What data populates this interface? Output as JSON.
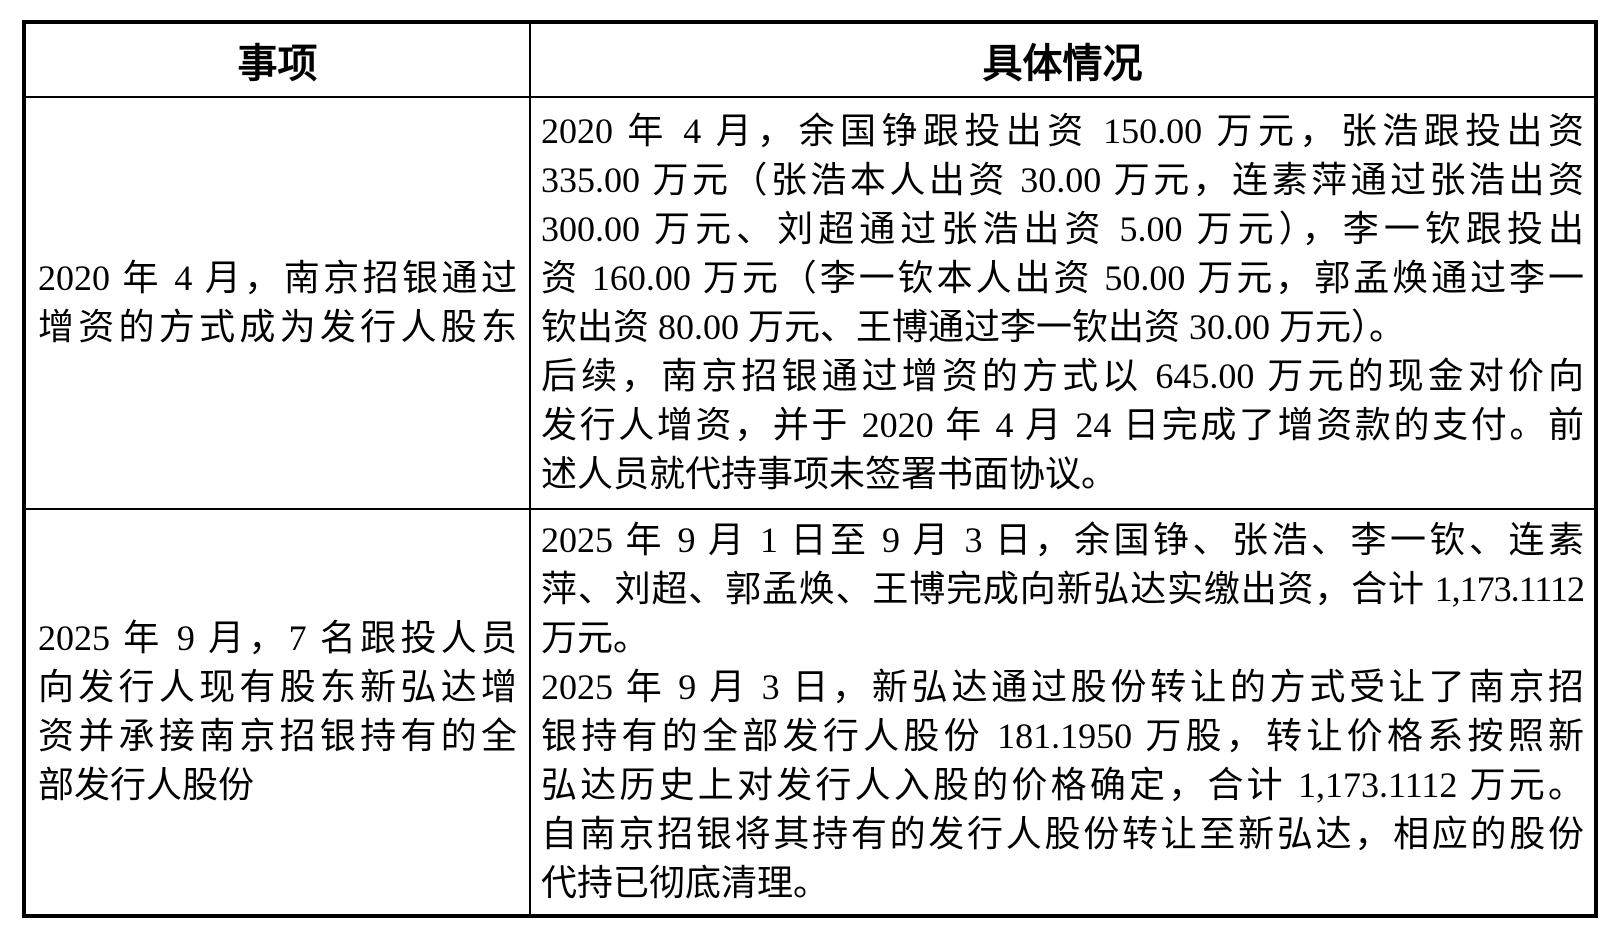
{
  "table": {
    "header": {
      "item": "事项",
      "detail": "具体情况"
    },
    "rows": [
      {
        "item_lines": [
          "2020 年 4 月，南京招银通过",
          "增资的方式成为发行人股东"
        ],
        "detail_paragraphs": [
          [
            "2020 年 4 月，余国铮跟投出资 150.00 万元，张浩跟投出资",
            "335.00 万元（张浩本人出资 30.00 万元，连素萍通过张浩出资",
            "300.00 万元、刘超通过张浩出资 5.00 万元），李一钦跟投出",
            "资 160.00 万元（李一钦本人出资 50.00 万元，郭孟焕通过李一",
            "钦出资 80.00 万元、王博通过李一钦出资 30.00 万元）。"
          ],
          [
            "后续，南京招银通过增资的方式以 645.00 万元的现金对价向",
            "发行人增资，并于 2020 年 4 月 24 日完成了增资款的支付。前",
            "述人员就代持事项未签署书面协议。"
          ]
        ]
      },
      {
        "item_lines": [
          "2025 年 9 月，7 名跟投人员",
          "向发行人现有股东新弘达增",
          "资并承接南京招银持有的全",
          "部发行人股份"
        ],
        "detail_paragraphs": [
          [
            "2025 年 9 月 1 日至 9 月 3 日，余国铮、张浩、李一钦、连素",
            "萍、刘超、郭孟焕、王博完成向新弘达实缴出资，合计 1,173.1112",
            "万元。"
          ],
          [
            "2025 年 9 月 3 日，新弘达通过股份转让的方式受让了南京招",
            "银持有的全部发行人股份 181.1950 万股，转让价格系按照新",
            "弘达历史上对发行人入股的价格确定，合计 1,173.1112 万元。",
            "自南京招银将其持有的发行人股份转让至新弘达，相应的股份",
            "代持已彻底清理。"
          ]
        ]
      }
    ]
  }
}
